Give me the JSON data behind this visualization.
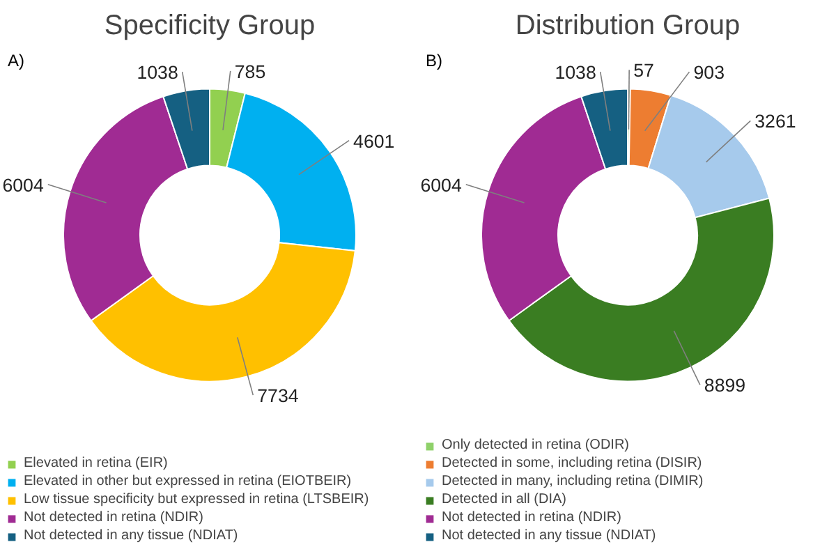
{
  "chart_data": [
    {
      "type": "donut",
      "title": "Specificity Group",
      "annotations": [
        "A)"
      ],
      "categories": [
        "Elevated in retina (EIR)",
        "Elevated in other but expressed in retina (EIOTBEIR)",
        "Low tissue specificity but expressed in retina (LTSBEIR)",
        "Not detected in retina (NDIR)",
        "Not detected in any tissue (NDIAT)"
      ],
      "values": [
        785,
        4601,
        7734,
        6004,
        1038
      ],
      "colors": [
        "#92d050",
        "#00b0f0",
        "#ffc000",
        "#a02b93",
        "#156082"
      ],
      "data_labels": true,
      "legend": "bottom"
    },
    {
      "type": "donut",
      "title": "Distribution Group",
      "annotations": [
        "B)"
      ],
      "categories": [
        "Only detected in retina (ODIR)",
        "Detected in some, including retina (DISIR)",
        "Detected in many, including retina (DIMIR)",
        "Detected in all (DIA)",
        "Not detected in retina (NDIR)",
        "Not detected in any tissue (NDIAT)"
      ],
      "values": [
        57,
        903,
        3261,
        8899,
        6004,
        1038
      ],
      "colors": [
        "#8fd16a",
        "#ed7d31",
        "#a6caec",
        "#3a7d22",
        "#a02b93",
        "#156082"
      ],
      "data_labels": true,
      "legend": "bottom"
    }
  ]
}
